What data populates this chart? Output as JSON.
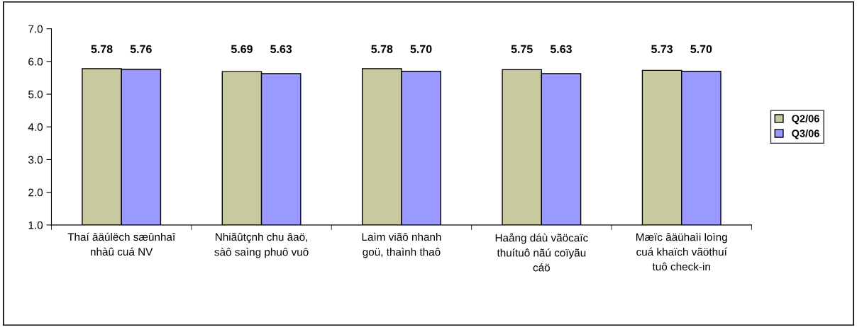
{
  "chart_data": {
    "type": "bar",
    "categories": [
      "Thaí âäúlëch sæûnhaî\nnhàû cuá NV",
      "Nhiãûtçnh chu âaö,\nsàô saìng phuô vuô",
      "Laìm viãô nhanh\ngoü, thaình thaô",
      "Haång dáù vãöcaïc\nthuítuô nãú coïyãu\ncáö",
      "Mæïc âäühaìi loìng\ncuá khaïch vãöthuí\ntuô check-in"
    ],
    "series": [
      {
        "name": "Q2/06",
        "color": "#c9c9a0",
        "values": [
          5.78,
          5.69,
          5.78,
          5.75,
          5.73
        ],
        "value_labels": [
          "5.78",
          "5.69",
          "5.78",
          "5.75",
          "5.73"
        ]
      },
      {
        "name": "Q3/06",
        "color": "#9999ff",
        "values": [
          5.76,
          5.63,
          5.7,
          5.63,
          5.7
        ],
        "value_labels": [
          "5.76",
          "5.63",
          "5.70",
          "5.63",
          "5.70"
        ]
      }
    ],
    "ylim": [
      1.0,
      7.0
    ],
    "yticks": [
      {
        "value": 1,
        "label": "1.0"
      },
      {
        "value": 2,
        "label": "2.0"
      },
      {
        "value": 3,
        "label": "3.0"
      },
      {
        "value": 4,
        "label": "4.0"
      },
      {
        "value": 5,
        "label": "5.0"
      },
      {
        "value": 6,
        "label": "6.0"
      },
      {
        "value": 7,
        "label": "7.0"
      }
    ],
    "legend": "right",
    "grid": false
  }
}
